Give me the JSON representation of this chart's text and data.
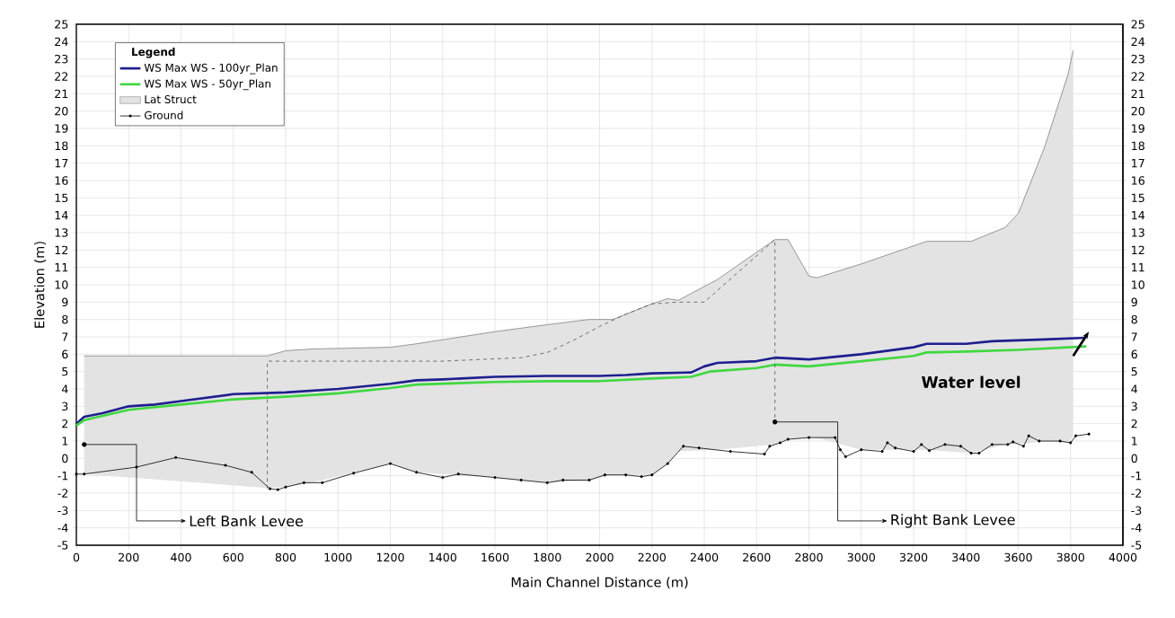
{
  "chart_data": {
    "type": "line",
    "xlabel": "Main Channel Distance (m)",
    "ylabel": "Elevation (m)",
    "legend_title": "Legend",
    "legend": "top left",
    "grid": true,
    "xlim": [
      0,
      4000
    ],
    "ylim": [
      -5,
      25
    ],
    "y2lim": [
      -5,
      25
    ],
    "xticks": [
      0,
      200,
      400,
      600,
      800,
      1000,
      1200,
      1400,
      1600,
      1800,
      2000,
      2200,
      2400,
      2600,
      2800,
      3000,
      3200,
      3400,
      3600,
      3800,
      4000
    ],
    "yticks": [
      -5,
      -4,
      -3,
      -2,
      -1,
      0,
      1,
      2,
      3,
      4,
      5,
      6,
      7,
      8,
      9,
      10,
      11,
      12,
      13,
      14,
      15,
      16,
      17,
      18,
      19,
      20,
      21,
      22,
      23,
      24,
      25
    ],
    "y2ticks": [
      -5,
      -4,
      -3,
      -2,
      -1,
      0,
      1,
      2,
      3,
      4,
      5,
      6,
      7,
      8,
      9,
      10,
      11,
      12,
      13,
      14,
      15,
      16,
      17,
      18,
      19,
      20,
      21,
      22,
      23,
      24,
      25
    ],
    "series": [
      {
        "name": "WS  Max WS - 100yr_Plan",
        "type": "line",
        "color": "#1f1f8f",
        "x": [
          0,
          30,
          100,
          200,
          300,
          400,
          600,
          800,
          1000,
          1200,
          1300,
          1400,
          1600,
          1800,
          2000,
          2100,
          2200,
          2350,
          2400,
          2450,
          2600,
          2670,
          2800,
          3000,
          3200,
          3250,
          3400,
          3500,
          3700,
          3860
        ],
        "values": [
          2.0,
          2.4,
          2.6,
          3.0,
          3.1,
          3.3,
          3.7,
          3.8,
          4.0,
          4.3,
          4.5,
          4.55,
          4.7,
          4.75,
          4.75,
          4.8,
          4.9,
          4.95,
          5.3,
          5.5,
          5.6,
          5.8,
          5.7,
          6.0,
          6.4,
          6.6,
          6.6,
          6.75,
          6.85,
          6.95
        ]
      },
      {
        "name": "WS  Max WS - 50yr_Plan",
        "type": "line",
        "color": "#40d840",
        "x": [
          0,
          30,
          200,
          400,
          600,
          800,
          1000,
          1200,
          1300,
          1600,
          1800,
          2000,
          2200,
          2350,
          2420,
          2600,
          2670,
          2800,
          3000,
          3200,
          3250,
          3400,
          3600,
          3860
        ],
        "values": [
          1.9,
          2.2,
          2.8,
          3.1,
          3.4,
          3.55,
          3.75,
          4.05,
          4.25,
          4.4,
          4.45,
          4.45,
          4.6,
          4.7,
          5.0,
          5.2,
          5.4,
          5.3,
          5.6,
          5.9,
          6.1,
          6.15,
          6.25,
          6.45
        ]
      },
      {
        "name": "Lat Struct",
        "type": "line",
        "color": "#808080",
        "x": [
          30,
          730,
          800,
          900,
          1200,
          1300,
          1600,
          1800,
          1960,
          2050,
          2200,
          2260,
          2300,
          2450,
          2670,
          2720,
          2800,
          2830,
          3000,
          3250,
          3420,
          3550,
          3600,
          3700,
          3790,
          3810
        ],
        "values": [
          5.9,
          5.9,
          6.2,
          6.3,
          6.4,
          6.6,
          7.3,
          7.7,
          8.0,
          8.0,
          8.9,
          9.2,
          9.1,
          10.3,
          12.6,
          12.6,
          10.5,
          10.4,
          11.2,
          12.5,
          12.5,
          13.3,
          14.1,
          17.9,
          22.1,
          23.5
        ],
        "upper": [
          5.9,
          5.9,
          6.2,
          6.3,
          6.4,
          6.6,
          7.3,
          7.7,
          8.0,
          8.0,
          8.9,
          9.2,
          9.1,
          10.3,
          12.6,
          12.6,
          10.5,
          10.4,
          11.2,
          12.5,
          12.5,
          13.3,
          14.1,
          17.9,
          22.1,
          23.5
        ],
        "lower": [
          -0.9,
          -1.7,
          -1.65,
          -1.4,
          -0.3,
          -0.8,
          -1.1,
          -1.4,
          -1.25,
          -0.95,
          -0.95,
          -0.3,
          0.4,
          0.5,
          0.8,
          1.1,
          1.2,
          1.2,
          0.5,
          0.5,
          0.3,
          0.8,
          0.8,
          1.0,
          0.9,
          1.3
        ]
      },
      {
        "name": "Ground",
        "type": "line",
        "color": "#000000",
        "marker": "circle",
        "x": [
          0,
          30,
          230,
          380,
          570,
          670,
          740,
          770,
          800,
          870,
          940,
          1060,
          1200,
          1300,
          1400,
          1460,
          1600,
          1700,
          1800,
          1860,
          1960,
          2020,
          2100,
          2160,
          2200,
          2260,
          2320,
          2380,
          2500,
          2630,
          2650,
          2690,
          2720,
          2800,
          2900,
          2920,
          2940,
          3000,
          3080,
          3100,
          3130,
          3200,
          3230,
          3260,
          3320,
          3380,
          3420,
          3450,
          3500,
          3560,
          3580,
          3620,
          3640,
          3680,
          3760,
          3800,
          3820,
          3870
        ],
        "values": [
          -0.9,
          -0.9,
          -0.5,
          0.05,
          -0.4,
          -0.8,
          -1.75,
          -1.8,
          -1.65,
          -1.4,
          -1.4,
          -0.85,
          -0.3,
          -0.8,
          -1.1,
          -0.9,
          -1.1,
          -1.25,
          -1.4,
          -1.25,
          -1.25,
          -0.95,
          -0.95,
          -1.05,
          -0.95,
          -0.3,
          0.7,
          0.6,
          0.4,
          0.25,
          0.7,
          0.9,
          1.1,
          1.2,
          1.2,
          0.5,
          0.1,
          0.5,
          0.4,
          0.9,
          0.6,
          0.4,
          0.8,
          0.45,
          0.8,
          0.7,
          0.3,
          0.3,
          0.8,
          0.8,
          0.95,
          0.7,
          1.3,
          1.0,
          1.0,
          0.9,
          1.3,
          1.4
        ]
      },
      {
        "type": "line",
        "color": "#505050",
        "line_style": "dashed",
        "x": [
          730,
          730,
          1000,
          1400,
          1700,
          1800,
          1900,
          2000,
          2100,
          2200,
          2300,
          2400,
          2670,
          2670
        ],
        "values": [
          -1.75,
          5.6,
          5.6,
          5.6,
          5.8,
          6.1,
          6.8,
          7.6,
          8.3,
          8.9,
          9.0,
          9.0,
          12.6,
          2.1
        ]
      }
    ],
    "annotations": [
      "Left Bank Levee",
      "Right Bank Levee",
      "Water level"
    ]
  }
}
